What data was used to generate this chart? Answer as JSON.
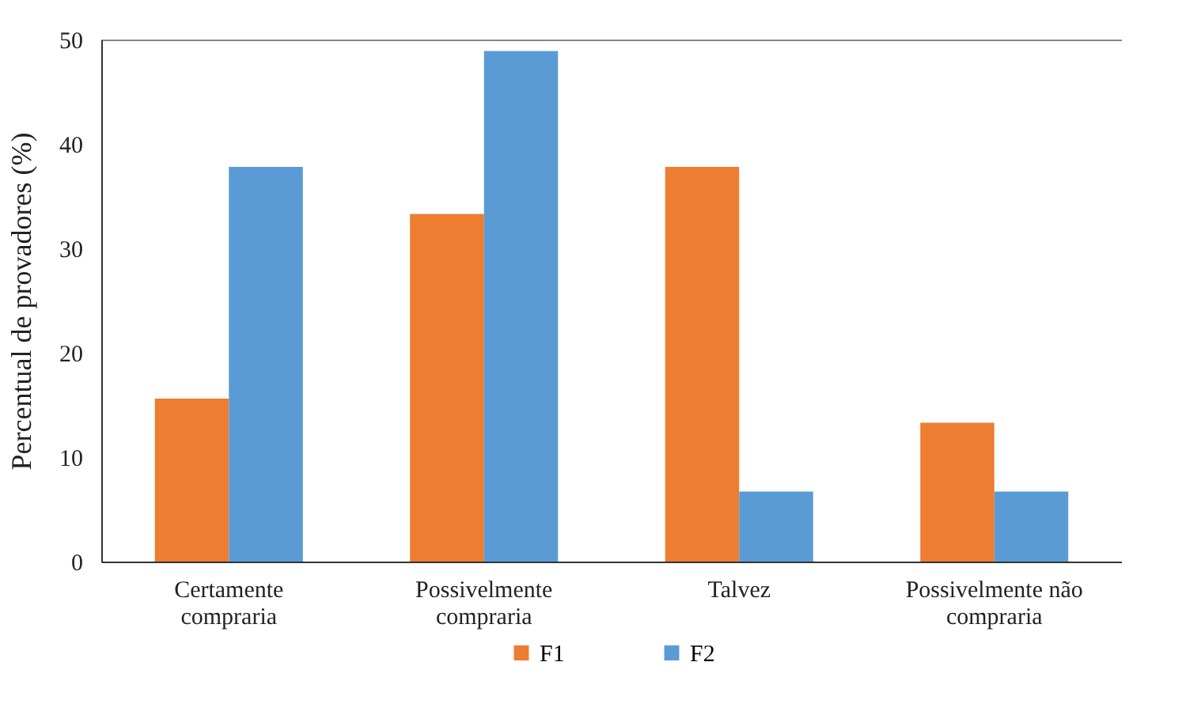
{
  "chart_data": {
    "type": "bar",
    "ylabel": "Percentual de provadores (%)",
    "categories": [
      "Certamente compraria",
      "Possivelmente compraria",
      "Talvez",
      "Possivelmente não compraria"
    ],
    "series": [
      {
        "name": "F1",
        "color": "#ed7d31",
        "values": [
          15.6,
          33.3,
          37.8,
          13.3
        ]
      },
      {
        "name": "F2",
        "color": "#5b9bd5",
        "values": [
          37.8,
          48.9,
          6.7,
          6.7
        ]
      }
    ],
    "ylim": [
      0,
      50
    ],
    "yticks": [
      0,
      10,
      20,
      30,
      40,
      50
    ],
    "grid": false,
    "legend": "bottom"
  }
}
